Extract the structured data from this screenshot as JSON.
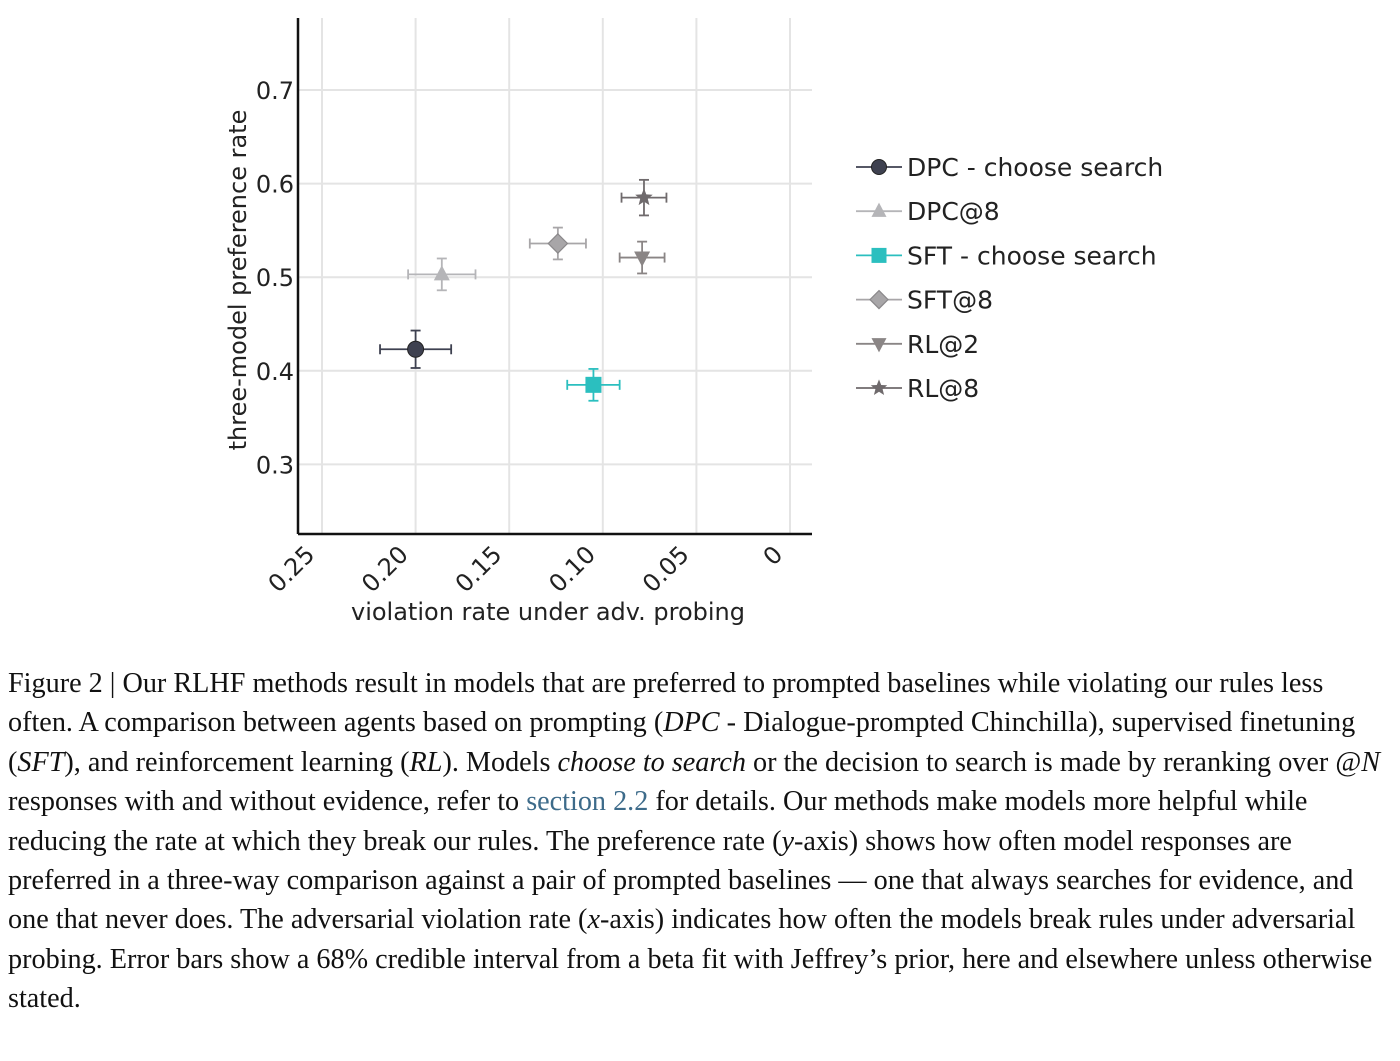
{
  "chart_data": {
    "type": "scatter",
    "xlabel": "violation rate under adv. probing",
    "ylabel": "three-model preference rate",
    "xlim": [
      0.25,
      0
    ],
    "ylim": [
      0.3,
      0.7
    ],
    "x_reversed": true,
    "x_ticks": [
      0.25,
      0.2,
      0.15,
      0.1,
      0.05,
      0
    ],
    "x_tick_labels": [
      "0.25",
      "0.20",
      "0.15",
      "0.10",
      "0.05",
      "0"
    ],
    "y_ticks": [
      0.3,
      0.4,
      0.5,
      0.6,
      0.7
    ],
    "y_tick_labels": [
      "0.3",
      "0.4",
      "0.5",
      "0.6",
      "0.7"
    ],
    "grid": true,
    "legend_position": "right",
    "series": [
      {
        "name": "DPC - choose search",
        "marker": "circle",
        "color": "#3e4150",
        "x": 0.2,
        "y": 0.423,
        "xerr": 0.019,
        "yerr": 0.02
      },
      {
        "name": "DPC@8",
        "marker": "triangle-up",
        "color": "#b5b5b8",
        "x": 0.186,
        "y": 0.503,
        "xerr": 0.018,
        "yerr": 0.017
      },
      {
        "name": "SFT - choose search",
        "marker": "square",
        "color": "#2bbfbf",
        "x": 0.105,
        "y": 0.385,
        "xerr": 0.014,
        "yerr": 0.017
      },
      {
        "name": "SFT@8",
        "marker": "diamond",
        "color": "#a8a6a8",
        "x": 0.124,
        "y": 0.536,
        "xerr": 0.015,
        "yerr": 0.017
      },
      {
        "name": "RL@2",
        "marker": "triangle-down",
        "color": "#8a8585",
        "x": 0.079,
        "y": 0.521,
        "xerr": 0.012,
        "yerr": 0.017
      },
      {
        "name": "RL@8",
        "marker": "star",
        "color": "#6f6a6c",
        "x": 0.078,
        "y": 0.585,
        "xerr": 0.012,
        "yerr": 0.019
      }
    ]
  },
  "caption": {
    "label": "Figure 2 | ",
    "s1": "Our RLHF methods result in models that are preferred to prompted baselines while violating our rules less often. A comparison between agents based on prompting (",
    "dpc": "DPC",
    "s2": " - Dialogue-prompted Chinchilla), supervised finetuning (",
    "sft": "SFT",
    "s3": "), and reinforcement learning (",
    "rl": "RL",
    "s4": "). Models ",
    "choose": "choose to search",
    "s5": " or the decision to search is made by reranking over @",
    "n": "N",
    "s6": " responses with and without evidence, refer to ",
    "link": "section 2.2",
    "s7": " for details. Our methods make models more helpful while reducing the rate at which they break our rules. The preference rate (",
    "yvar": "y",
    "s8": "-axis) shows how often model responses are preferred in a three-way comparison against a pair of prompted baselines — one that always searches for evidence, and one that never does. The adversarial violation rate (",
    "xvar": "x",
    "s9": "-axis) indicates how often the models break rules under adversarial probing. Error bars show a 68% credible interval from a beta fit with Jeffrey’s prior, here and elsewhere unless otherwise stated."
  }
}
